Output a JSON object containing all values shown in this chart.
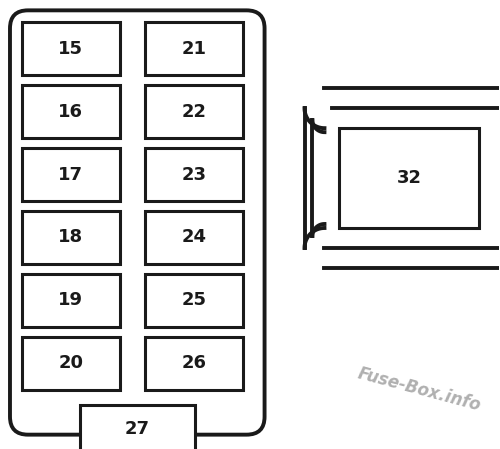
{
  "bg_color": "#ffffff",
  "line_color": "#1a1a1a",
  "text_color": "#1a1a1a",
  "watermark_color": "#b0b0b0",
  "watermark_text": "Fuse-Box.info",
  "left_labels": [
    "15",
    "16",
    "17",
    "18",
    "19",
    "20"
  ],
  "right_labels": [
    "21",
    "22",
    "23",
    "24",
    "25",
    "26"
  ],
  "bottom_label": "27",
  "side_label": "32",
  "fuse_lw": 2.2,
  "outer_lw": 2.8
}
